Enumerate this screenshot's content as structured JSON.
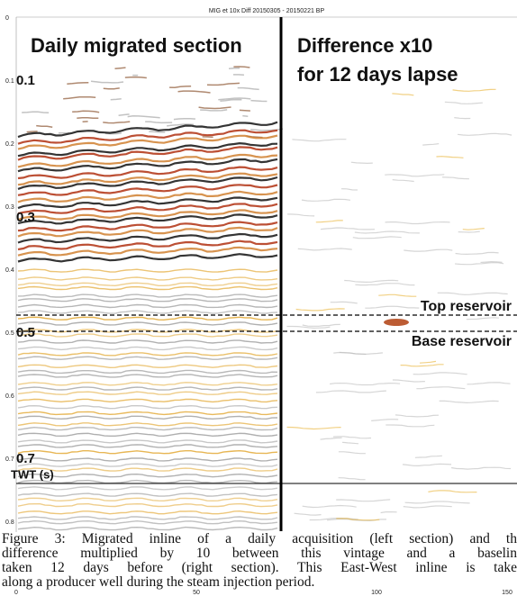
{
  "figure": {
    "title": "MIG et 10x Diff 20150305 - 20150221 BP",
    "left_label": "Daily migrated section",
    "right_label": [
      "Difference x10",
      "for 12 days lapse"
    ],
    "y_ticks": [
      "0",
      "0.1",
      "0.2",
      "0.3",
      "0.4",
      "0.5",
      "0.6",
      "0.7",
      "0.8"
    ],
    "x_ticks": [
      "0",
      "50",
      "100",
      "150"
    ],
    "overlay_ticks": [
      "0.1",
      "0.3",
      "0.5",
      "0.7"
    ],
    "y_axis_label": "TWT (s)",
    "horizons": [
      "Top reservoir",
      "Base reservoir"
    ],
    "caption": [
      "Figure 3: Migrated inline of a daily acquisition (left section) and th",
      "difference multiplied by 10 between this vintage and a baselin",
      "taken 12 days before (right section). This East-West inline is take",
      "along a producer well during the steam injection period."
    ]
  }
}
